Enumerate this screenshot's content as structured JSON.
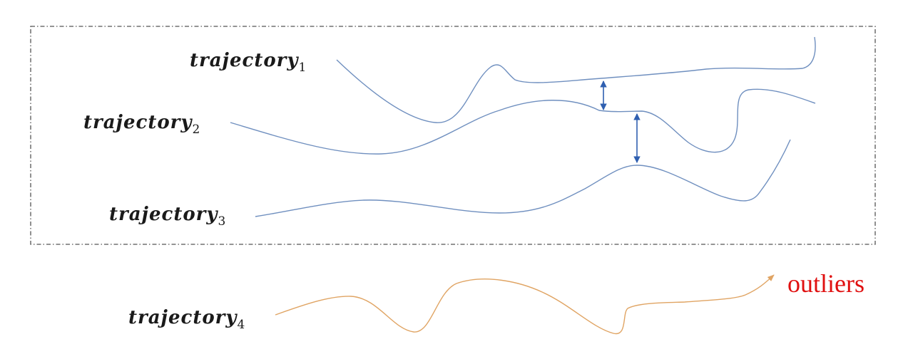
{
  "colors": {
    "normal_trajectory": "#6f8fbf",
    "outlier_trajectory": "#e0a463",
    "distance_arrow": "#2f5fb0",
    "outlier_text": "#e01010",
    "frame": "#555555"
  },
  "trajectories": [
    {
      "name": "trajectory",
      "sub": "1"
    },
    {
      "name": "trajectory",
      "sub": "2"
    },
    {
      "name": "trajectory",
      "sub": "3"
    },
    {
      "name": "trajectory",
      "sub": "4"
    }
  ],
  "outlier_label": "outliers"
}
